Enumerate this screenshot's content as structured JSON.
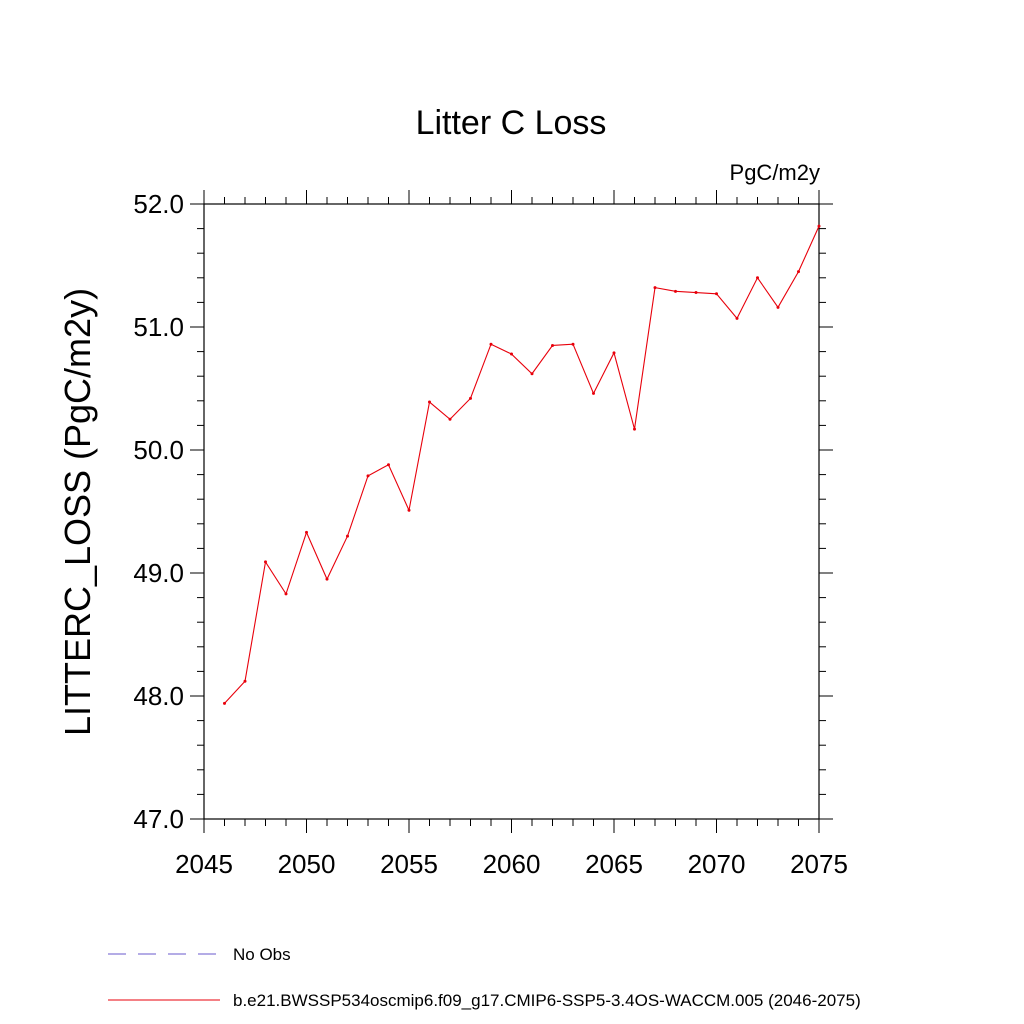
{
  "chart_data": {
    "type": "line",
    "title": "Litter C Loss",
    "units_label": "PgC/m2y",
    "ylabel": "LITTERC_LOSS  (PgC/m2y)",
    "xlabel": "",
    "xlim": [
      2045,
      2075
    ],
    "ylim": [
      47.0,
      52.0
    ],
    "x_ticks": [
      2045,
      2050,
      2055,
      2060,
      2065,
      2070,
      2075
    ],
    "x_tick_labels": [
      "2045",
      "2050",
      "2055",
      "2060",
      "2065",
      "2070",
      "2075"
    ],
    "y_ticks": [
      47.0,
      48.0,
      49.0,
      50.0,
      51.0,
      52.0
    ],
    "y_tick_labels": [
      "47.0",
      "48.0",
      "49.0",
      "50.0",
      "51.0",
      "52.0"
    ],
    "grid": false,
    "legend_position": "bottom",
    "series": [
      {
        "name": "b.e21.BWSSP534oscmip6.f09_g17.CMIP6-SSP5-3.4OS-WACCM.005 (2046-2075)",
        "color": "#e8000b",
        "style": "solid",
        "x": [
          2046,
          2047,
          2048,
          2049,
          2050,
          2051,
          2052,
          2053,
          2054,
          2055,
          2056,
          2057,
          2058,
          2059,
          2060,
          2061,
          2062,
          2063,
          2064,
          2065,
          2066,
          2067,
          2068,
          2069,
          2070,
          2071,
          2072,
          2073,
          2074,
          2075
        ],
        "y": [
          47.94,
          48.12,
          49.09,
          48.83,
          49.33,
          48.95,
          49.3,
          49.79,
          49.88,
          49.51,
          50.39,
          50.25,
          50.42,
          50.86,
          50.78,
          50.62,
          50.85,
          50.86,
          50.46,
          50.79,
          50.17,
          51.32,
          51.29,
          51.28,
          51.27,
          51.07,
          51.4,
          51.16,
          51.45,
          51.82
        ]
      }
    ],
    "legend": [
      {
        "label": "No Obs",
        "color": "#6a5acd",
        "style": "dashed"
      },
      {
        "label": "b.e21.BWSSP534oscmip6.f09_g17.CMIP6-SSP5-3.4OS-WACCM.005 (2046-2075)",
        "color": "#e8000b",
        "style": "solid"
      }
    ]
  }
}
